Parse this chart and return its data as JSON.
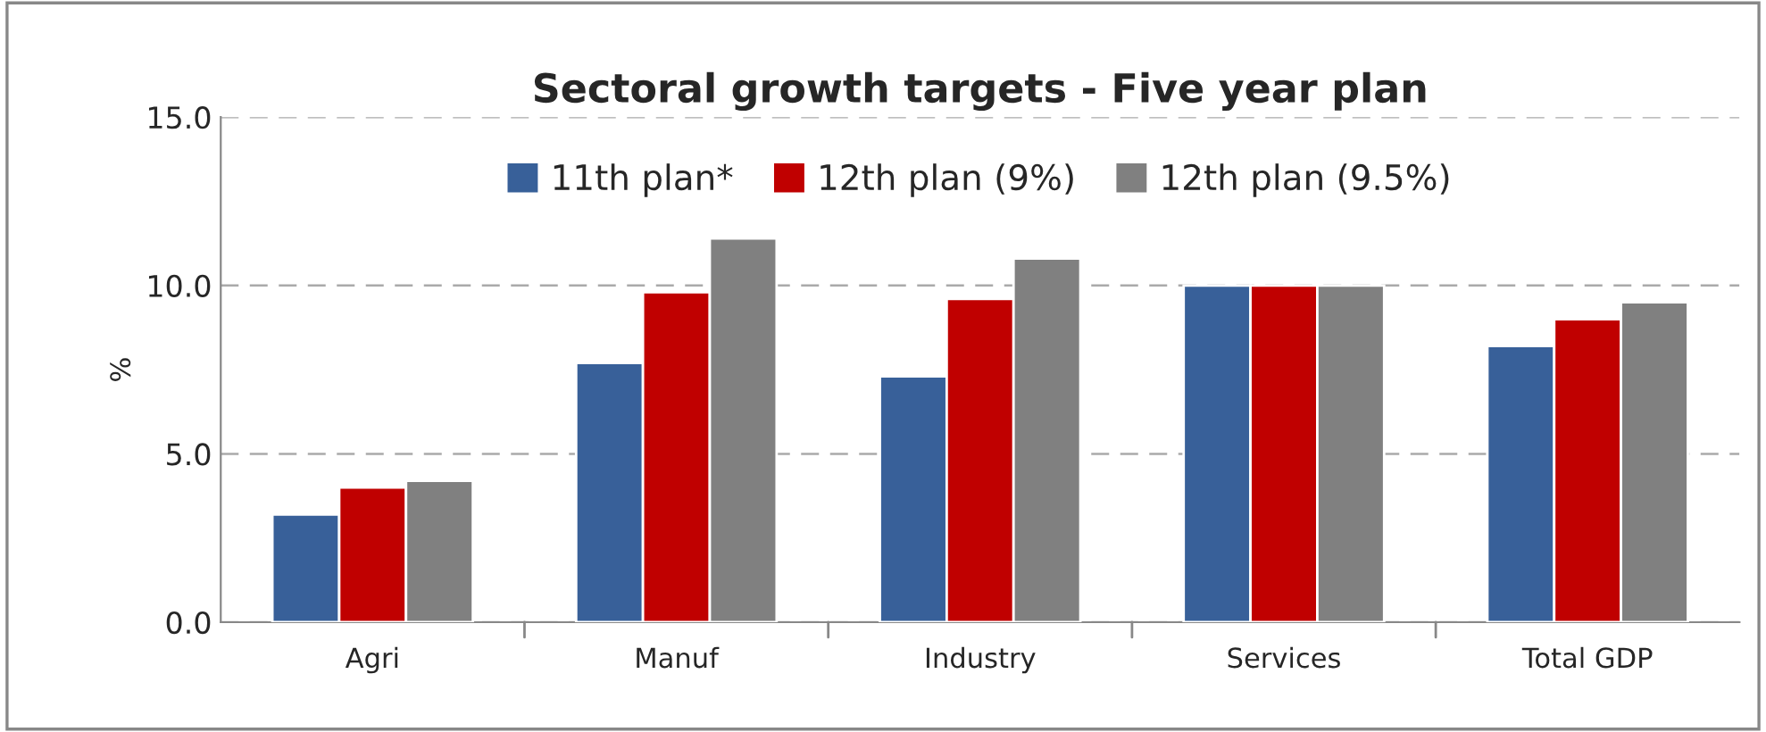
{
  "chart_data": {
    "type": "bar",
    "title": "Sectoral growth targets - Five year plan",
    "ylabel": "%",
    "categories": [
      "Agri",
      "Manuf",
      "Industry",
      "Services",
      "Total GDP"
    ],
    "series": [
      {
        "name": "11th plan*",
        "color": "#386099",
        "values": [
          3.2,
          7.7,
          7.3,
          10.0,
          8.2
        ]
      },
      {
        "name": "12th plan (9%)",
        "color": "#c00000",
        "values": [
          4.0,
          9.8,
          9.6,
          10.0,
          9.0
        ]
      },
      {
        "name": "12th plan (9.5%)",
        "color": "#808080",
        "values": [
          4.2,
          11.4,
          10.8,
          10.0,
          9.5
        ]
      }
    ],
    "ylim": [
      0,
      15
    ],
    "yticks": [
      {
        "value": 0,
        "label": "0.0"
      },
      {
        "value": 5,
        "label": "5.0"
      },
      {
        "value": 10,
        "label": "10.0"
      },
      {
        "value": 15,
        "label": "15.0"
      }
    ],
    "grid": "y",
    "legend": "top"
  }
}
